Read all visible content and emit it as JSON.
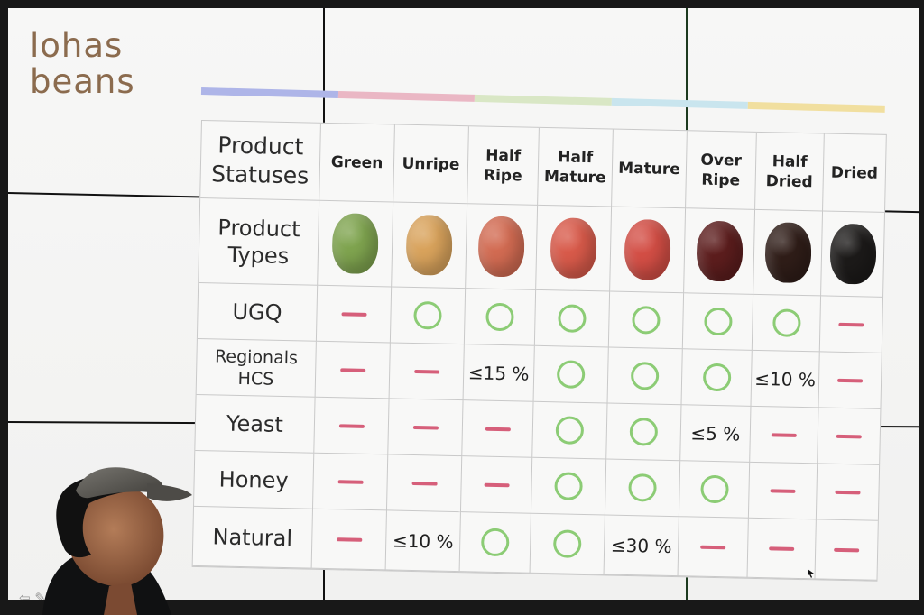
{
  "brand": {
    "line1": "lohas",
    "line2": "beans"
  },
  "colors": {
    "screen": "#f4f4f3",
    "text": "#222222",
    "brand": "#8b6b4e",
    "ring": "#8ccc75",
    "dash": "#d65f7a",
    "grid_line": "#c9c9c9",
    "strip": [
      "#aeb5e8",
      "#eab7c4",
      "#d9e7c5",
      "#c9e5ee",
      "#f1df9f"
    ]
  },
  "table": {
    "header_label": "Product Statuses",
    "columns": [
      "Green",
      "Unripe",
      "Half Ripe",
      "Half Mature",
      "Mature",
      "Over Ripe",
      "Half Dried",
      "Dried"
    ],
    "product_types_label": "Product Types",
    "bean_colors": [
      "#7fa44f",
      "#d9a35c",
      "#d26b52",
      "#d85a4a",
      "#d34e45",
      "#5c1d1d",
      "#2f1d18",
      "#1c1a19"
    ],
    "rows": [
      {
        "label": "UGQ",
        "cells": [
          "dash",
          "ring",
          "ring",
          "ring",
          "ring",
          "ring",
          "ring",
          "dash"
        ]
      },
      {
        "label": "Regionals HCS",
        "cells": [
          "dash",
          "dash",
          "≤15 %",
          "ring",
          "ring",
          "ring",
          "≤10 %",
          "dash"
        ]
      },
      {
        "label": "Yeast",
        "cells": [
          "dash",
          "dash",
          "dash",
          "ring",
          "ring",
          "≤5 %",
          "dash",
          "dash"
        ]
      },
      {
        "label": "Honey",
        "cells": [
          "dash",
          "dash",
          "dash",
          "ring",
          "ring",
          "ring",
          "dash",
          "dash"
        ]
      },
      {
        "label": "Natural",
        "cells": [
          "dash",
          "≤10 %",
          "ring",
          "ring",
          "≤30 %",
          "dash",
          "dash",
          "dash"
        ]
      }
    ]
  },
  "icons": {
    "presentation_back": "arrow-left-icon",
    "presentation_pen": "pen-icon"
  }
}
